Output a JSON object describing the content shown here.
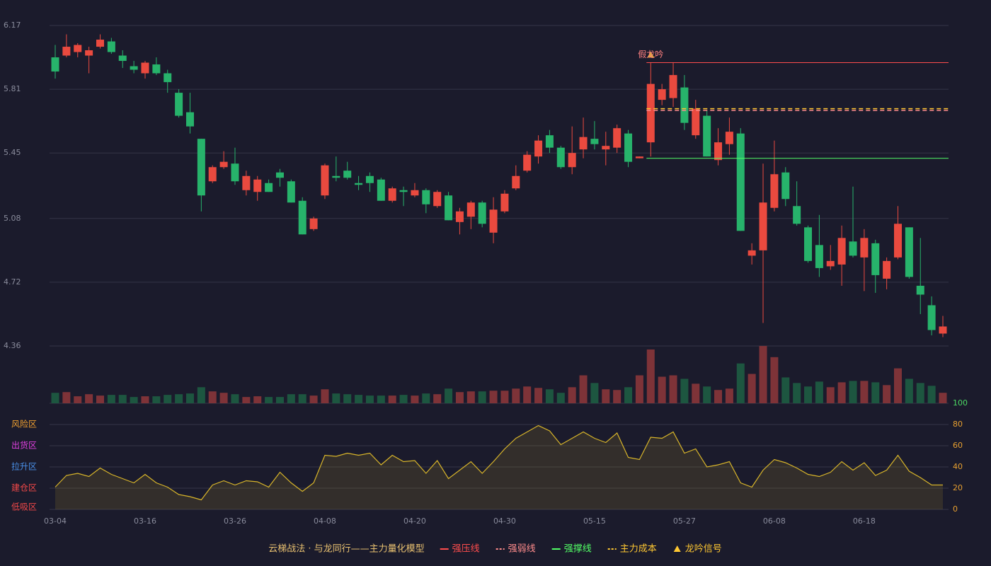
{
  "chart_data": {
    "type": "candlestick",
    "categories": [
      "03-04",
      null,
      null,
      null,
      null,
      null,
      null,
      null,
      "03-16",
      null,
      null,
      null,
      null,
      null,
      null,
      null,
      "03-26",
      null,
      null,
      null,
      null,
      null,
      null,
      null,
      "04-08",
      null,
      null,
      null,
      null,
      null,
      null,
      null,
      "04-20",
      null,
      null,
      null,
      null,
      null,
      null,
      null,
      "04-30",
      null,
      null,
      null,
      null,
      null,
      null,
      null,
      "05-15",
      null,
      null,
      null,
      null,
      null,
      null,
      null,
      "05-27",
      null,
      null,
      null,
      null,
      null,
      null,
      null,
      "06-08",
      null,
      null,
      null,
      null,
      null,
      null,
      null,
      "06-18",
      null,
      null,
      null,
      null,
      null,
      null,
      null
    ],
    "open": [
      5.99,
      6.0,
      6.02,
      6.0,
      6.05,
      6.08,
      6.0,
      5.94,
      5.9,
      5.95,
      5.9,
      5.79,
      5.68,
      5.53,
      5.29,
      5.37,
      5.39,
      5.24,
      5.23,
      5.28,
      5.34,
      5.29,
      5.18,
      5.02,
      5.21,
      5.32,
      5.35,
      5.28,
      5.32,
      5.3,
      5.18,
      5.24,
      5.21,
      5.24,
      5.15,
      5.21,
      5.06,
      5.09,
      5.17,
      5.0,
      5.12,
      5.25,
      5.35,
      5.43,
      5.55,
      5.48,
      5.37,
      5.47,
      5.53,
      5.47,
      5.48,
      5.56,
      5.42,
      5.51,
      5.75,
      5.76,
      5.82,
      5.55,
      5.66,
      5.41,
      5.5,
      5.56,
      4.87,
      4.9,
      5.14,
      5.34,
      5.15,
      5.03,
      4.93,
      4.81,
      4.82,
      4.95,
      4.86,
      4.94,
      4.74,
      4.86,
      5.03,
      4.7,
      4.59,
      4.43
    ],
    "high": [
      6.06,
      6.12,
      6.07,
      6.05,
      6.12,
      6.1,
      6.03,
      5.97,
      5.97,
      5.99,
      5.92,
      5.81,
      5.79,
      5.53,
      5.38,
      5.46,
      5.48,
      5.35,
      5.32,
      5.3,
      5.36,
      5.3,
      5.2,
      5.09,
      5.39,
      5.43,
      5.4,
      5.32,
      5.34,
      5.31,
      5.26,
      5.26,
      5.28,
      5.25,
      5.24,
      5.23,
      5.14,
      5.18,
      5.18,
      5.2,
      5.24,
      5.38,
      5.46,
      5.55,
      5.58,
      5.49,
      5.6,
      5.65,
      5.63,
      5.57,
      5.61,
      5.58,
      5.43,
      5.96,
      5.84,
      5.96,
      5.89,
      5.75,
      5.69,
      5.59,
      5.65,
      5.59,
      4.94,
      5.39,
      5.52,
      5.37,
      5.29,
      5.04,
      5.1,
      4.93,
      5.04,
      5.26,
      5.02,
      4.96,
      4.86,
      5.15,
      5.03,
      4.97,
      4.64,
      4.53
    ],
    "low": [
      5.87,
      5.99,
      5.99,
      5.9,
      6.04,
      6.01,
      5.93,
      5.9,
      5.87,
      5.89,
      5.79,
      5.65,
      5.56,
      5.12,
      5.28,
      5.36,
      5.27,
      5.21,
      5.18,
      5.23,
      5.26,
      5.17,
      4.99,
      5.01,
      5.19,
      5.29,
      5.3,
      5.24,
      5.23,
      5.18,
      5.17,
      5.15,
      5.2,
      5.11,
      5.14,
      5.07,
      4.99,
      5.02,
      5.03,
      4.94,
      5.11,
      5.24,
      5.34,
      5.39,
      5.45,
      5.36,
      5.33,
      5.42,
      5.47,
      5.38,
      5.45,
      5.37,
      5.42,
      5.43,
      5.72,
      5.71,
      5.58,
      5.53,
      5.43,
      5.38,
      5.44,
      5.01,
      4.82,
      4.49,
      5.12,
      5.15,
      5.04,
      4.83,
      4.75,
      4.79,
      4.7,
      4.86,
      4.67,
      4.66,
      4.68,
      4.85,
      4.74,
      4.54,
      4.42,
      4.41
    ],
    "close": [
      5.91,
      6.05,
      6.06,
      6.03,
      6.09,
      6.02,
      5.97,
      5.92,
      5.96,
      5.9,
      5.85,
      5.66,
      5.6,
      5.21,
      5.37,
      5.4,
      5.29,
      5.32,
      5.3,
      5.23,
      5.31,
      5.17,
      4.99,
      5.08,
      5.38,
      5.31,
      5.31,
      5.27,
      5.28,
      5.18,
      5.25,
      5.23,
      5.24,
      5.16,
      5.23,
      5.07,
      5.12,
      5.17,
      5.05,
      5.13,
      5.22,
      5.32,
      5.44,
      5.52,
      5.48,
      5.37,
      5.45,
      5.54,
      5.5,
      5.49,
      5.59,
      5.4,
      5.43,
      5.84,
      5.81,
      5.89,
      5.62,
      5.7,
      5.43,
      5.51,
      5.57,
      5.01,
      4.9,
      5.17,
      5.33,
      5.19,
      5.05,
      4.84,
      4.8,
      4.84,
      4.97,
      4.87,
      4.97,
      4.76,
      4.84,
      5.05,
      4.75,
      4.65,
      4.45,
      4.47
    ],
    "ylim": [
      4.36,
      6.17
    ],
    "yticks": [
      4.36,
      4.72,
      5.08,
      5.45,
      5.81,
      6.17
    ],
    "up_color": "#ea4a3f",
    "down_color": "#27b36b",
    "volume": [
      15,
      16,
      10,
      13,
      11,
      12,
      12,
      9,
      10,
      10,
      12,
      13,
      14,
      23,
      17,
      15,
      13,
      9,
      10,
      9,
      9,
      13,
      13,
      11,
      20,
      14,
      13,
      12,
      11,
      11,
      11,
      12,
      11,
      14,
      13,
      21,
      16,
      17,
      17,
      18,
      18,
      21,
      24,
      22,
      20,
      15,
      23,
      40,
      29,
      20,
      19,
      23,
      40,
      77,
      38,
      40,
      35,
      28,
      24,
      19,
      21,
      57,
      42,
      82,
      66,
      37,
      29,
      24,
      31,
      23,
      30,
      32,
      32,
      30,
      26,
      50,
      35,
      29,
      25,
      15
    ],
    "volume_up_color": "#7e3338",
    "volume_down_color": "#1d5640",
    "indicator": {
      "values": [
        21,
        32,
        34,
        31,
        39,
        33,
        29,
        25,
        33,
        25,
        21,
        14,
        12,
        9,
        23,
        27,
        23,
        27,
        26,
        21,
        35,
        25,
        17,
        25,
        51,
        50,
        53,
        51,
        53,
        42,
        51,
        45,
        46,
        34,
        46,
        29,
        37,
        45,
        34,
        45,
        57,
        67,
        73,
        79,
        74,
        61,
        67,
        73,
        67,
        63,
        72,
        49,
        47,
        68,
        67,
        73,
        53,
        57,
        40,
        42,
        45,
        25,
        21,
        37,
        47,
        44,
        39,
        33,
        31,
        35,
        45,
        37,
        44,
        32,
        37,
        51,
        36,
        30,
        23,
        23
      ],
      "color": "#d8b52a",
      "ylim": [
        0,
        100
      ],
      "yticks": [
        0,
        20,
        40,
        60,
        80,
        100
      ],
      "tick_color": "#e8a030",
      "top_tick_color": "#4cd964",
      "zones": [
        {
          "label": "风险区",
          "value": 80,
          "color": "#f0a030"
        },
        {
          "label": "出货区",
          "value": 60,
          "color": "#e040e0"
        },
        {
          "label": "拉升区",
          "value": 40,
          "color": "#4a90e8"
        },
        {
          "label": "建仓区",
          "value": 20,
          "color": "#f04848"
        },
        {
          "label": "低吸区",
          "value": 0,
          "color": "#f04848"
        }
      ]
    },
    "levels": [
      {
        "name": "强压线",
        "value": 5.96,
        "color": "#ff4d4d",
        "dash": false,
        "from_index": 53
      },
      {
        "name": "强弱线",
        "value": 5.69,
        "color": "#ff8c8c",
        "dash": true,
        "from_index": 53
      },
      {
        "name": "强撑线",
        "value": 5.42,
        "color": "#52ff66",
        "dash": false,
        "from_index": 53
      },
      {
        "name": "主力成本",
        "value": 5.7,
        "color": "#ffc832",
        "dash": true,
        "from_index": 53
      }
    ],
    "signal": {
      "name": "龙吟信号",
      "label": "假龙吟",
      "index": 53,
      "color": "#ffc832",
      "label_color": "#ff8080"
    },
    "legend_title": "云梯战法 · 与龙同行——主力量化模型",
    "legend_title_color": "#e8c070",
    "grid": true
  }
}
